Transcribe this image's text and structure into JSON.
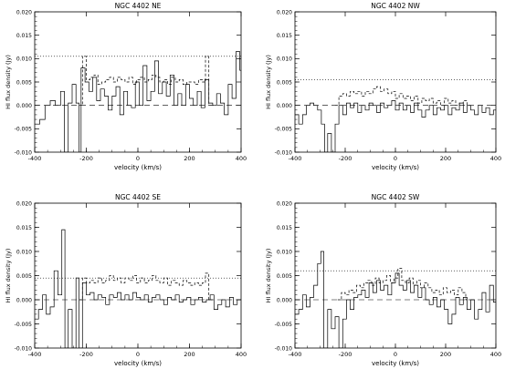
{
  "chart_data": [
    {
      "type": "line",
      "title": "NGC 4402 NE",
      "xlabel": "velocity (km/s)",
      "ylabel": "HI flux density (Jy)",
      "xlim": [
        -400,
        400
      ],
      "ylim": [
        -0.01,
        0.02
      ],
      "xticks": [
        -400,
        -200,
        0,
        200,
        400
      ],
      "yticks": [
        -0.01,
        -0.005,
        0.0,
        0.005,
        0.01,
        0.015,
        0.02
      ],
      "xtick_labels": [
        "-400",
        "-200",
        "0",
        "200",
        "400"
      ],
      "ytick_labels": [
        "-0.010",
        "-0.005",
        "0.000",
        "0.005",
        "0.010",
        "0.015",
        "0.020"
      ],
      "hlines": [
        {
          "style": "dotted",
          "y": 0.0105
        },
        {
          "style": "dashed",
          "y": 0.0
        }
      ],
      "series": [
        {
          "style": "solid-step",
          "x": [
            -400,
            -380,
            -360,
            -340,
            -320,
            -300,
            -285,
            -270,
            -255,
            -240,
            -228,
            -220,
            -205,
            -190,
            -175,
            -160,
            -145,
            -130,
            -115,
            -100,
            -85,
            -70,
            -55,
            -40,
            -25,
            -10,
            5,
            20,
            35,
            50,
            65,
            80,
            95,
            110,
            125,
            140,
            155,
            170,
            185,
            200,
            215,
            230,
            245,
            260,
            275,
            290,
            305,
            320,
            335,
            350,
            365,
            380,
            395
          ],
          "y": [
            -0.004,
            -0.003,
            0.0,
            0.001,
            0.0,
            0.003,
            -0.0105,
            0.0005,
            0.0045,
            0.0005,
            -0.0105,
            0.008,
            0.005,
            0.003,
            0.006,
            0.001,
            0.0035,
            0.002,
            -0.001,
            0.002,
            0.004,
            -0.002,
            0.003,
            0.0,
            -0.0005,
            0.005,
            0.0,
            0.0085,
            0.001,
            0.003,
            0.0095,
            0.0025,
            0.005,
            0.002,
            0.0065,
            0.0,
            0.0025,
            0.0,
            0.0045,
            0.0015,
            0.0,
            0.003,
            -0.0005,
            0.0055,
            0.0005,
            0.0,
            0.0025,
            0.0005,
            -0.002,
            0.0045,
            0.0015,
            0.0115,
            0.0075
          ]
        },
        {
          "style": "dashed-step",
          "x": [
            -228,
            -215,
            -200,
            -185,
            -170,
            -155,
            -140,
            -125,
            -110,
            -95,
            -80,
            -65,
            -50,
            -35,
            -20,
            -5,
            10,
            25,
            40,
            55,
            70,
            85,
            100,
            115,
            130,
            145,
            160,
            175,
            190,
            205,
            220,
            235,
            250,
            262,
            275
          ],
          "y": [
            0.0,
            0.0105,
            0.0055,
            0.006,
            0.0065,
            0.0045,
            0.005,
            0.0055,
            0.006,
            0.005,
            0.006,
            0.0055,
            0.005,
            0.006,
            0.0045,
            0.0055,
            0.006,
            0.005,
            0.0055,
            0.0065,
            0.006,
            0.005,
            0.0055,
            0.0045,
            0.006,
            0.005,
            0.0055,
            0.0045,
            0.005,
            0.005,
            0.0045,
            0.0055,
            0.005,
            0.0105,
            0.0
          ]
        }
      ]
    },
    {
      "type": "line",
      "title": "NGC 4402 NW",
      "xlabel": "velocity (km/s)",
      "ylabel": "HI flux density (Jy)",
      "xlim": [
        -400,
        400
      ],
      "ylim": [
        -0.01,
        0.02
      ],
      "xticks": [
        -400,
        -200,
        0,
        200,
        400
      ],
      "yticks": [
        -0.01,
        -0.005,
        0.0,
        0.005,
        0.01,
        0.015,
        0.02
      ],
      "xtick_labels": [
        "-400",
        "-200",
        "0",
        "200",
        "400"
      ],
      "ytick_labels": [
        "-0.010",
        "-0.005",
        "0.000",
        "0.005",
        "0.010",
        "0.015",
        "0.020"
      ],
      "hlines": [
        {
          "style": "dotted",
          "y": 0.0055
        },
        {
          "style": "dashed",
          "y": 0.0
        }
      ],
      "series": [
        {
          "style": "solid-step",
          "x": [
            -400,
            -385,
            -370,
            -355,
            -340,
            -325,
            -310,
            -295,
            -282,
            -270,
            -255,
            -240,
            -225,
            -210,
            -195,
            -180,
            -165,
            -150,
            -135,
            -120,
            -105,
            -90,
            -75,
            -60,
            -45,
            -30,
            -15,
            0,
            15,
            30,
            45,
            60,
            75,
            90,
            105,
            120,
            135,
            150,
            165,
            180,
            195,
            210,
            225,
            240,
            255,
            270,
            285,
            300,
            315,
            330,
            345,
            360,
            375,
            390
          ],
          "y": [
            -0.002,
            -0.004,
            -0.002,
            0.0,
            0.0005,
            0.0,
            -0.001,
            -0.004,
            -0.01,
            -0.006,
            -0.0105,
            -0.004,
            0.0,
            -0.002,
            0.0005,
            -0.0005,
            0.0005,
            -0.0015,
            0.0,
            -0.001,
            0.0005,
            0.0,
            -0.0015,
            0.0005,
            -0.0005,
            0.0,
            0.001,
            -0.001,
            0.0005,
            -0.001,
            0.0,
            -0.0015,
            0.0005,
            -0.001,
            -0.0025,
            -0.001,
            0.0,
            -0.002,
            -0.0005,
            -0.001,
            0.0,
            -0.002,
            -0.0005,
            -0.001,
            0.0005,
            -0.0015,
            0.0,
            -0.001,
            -0.002,
            0.0,
            -0.0015,
            -0.0005,
            -0.002,
            -0.001
          ]
        },
        {
          "style": "dashed-step",
          "x": [
            -240,
            -225,
            -210,
            -195,
            -180,
            -165,
            -150,
            -135,
            -120,
            -105,
            -90,
            -75,
            -60,
            -45,
            -30,
            -15,
            0,
            15,
            30,
            45,
            60,
            75,
            90,
            105,
            120,
            135,
            150,
            165,
            180,
            195,
            210,
            225,
            240,
            255,
            270,
            285
          ],
          "y": [
            0.0,
            0.002,
            0.0025,
            0.002,
            0.003,
            0.0025,
            0.003,
            0.002,
            0.003,
            0.0025,
            0.0035,
            0.004,
            0.003,
            0.0035,
            0.0025,
            0.003,
            0.0015,
            0.0025,
            0.0015,
            0.002,
            0.001,
            0.002,
            0.0005,
            0.0015,
            0.001,
            0.0015,
            0.0005,
            0.001,
            0.0,
            0.0015,
            0.0005,
            0.001,
            0.0,
            0.0005,
            0.001,
            0.0
          ]
        }
      ]
    },
    {
      "type": "line",
      "title": "NGC 4402 SE",
      "xlabel": "velocity (km/s)",
      "ylabel": "HI flux density (Jy)",
      "xlim": [
        -400,
        400
      ],
      "ylim": [
        -0.01,
        0.02
      ],
      "xticks": [
        -400,
        -200,
        0,
        200,
        400
      ],
      "yticks": [
        -0.01,
        -0.005,
        0.0,
        0.005,
        0.01,
        0.015,
        0.02
      ],
      "xtick_labels": [
        "-400",
        "-200",
        "0",
        "200",
        "400"
      ],
      "ytick_labels": [
        "-0.010",
        "-0.005",
        "0.000",
        "0.005",
        "0.010",
        "0.015",
        "0.020"
      ],
      "hlines": [
        {
          "style": "dotted",
          "y": 0.0045
        },
        {
          "style": "dashed",
          "y": 0.0
        }
      ],
      "series": [
        {
          "style": "solid-step",
          "x": [
            -400,
            -385,
            -370,
            -355,
            -340,
            -325,
            -310,
            -295,
            -283,
            -270,
            -255,
            -240,
            -228,
            -215,
            -200,
            -185,
            -170,
            -155,
            -140,
            -125,
            -110,
            -95,
            -80,
            -65,
            -50,
            -35,
            -20,
            -5,
            10,
            25,
            40,
            55,
            70,
            85,
            100,
            115,
            130,
            145,
            160,
            175,
            190,
            205,
            220,
            235,
            250,
            265,
            280,
            295,
            310,
            325,
            340,
            355,
            370,
            385
          ],
          "y": [
            -0.004,
            -0.002,
            0.001,
            -0.003,
            -0.0015,
            0.006,
            0.001,
            0.0145,
            -0.0105,
            -0.002,
            -0.0105,
            0.0045,
            -0.0105,
            0.0035,
            0.001,
            0.0015,
            0.0,
            0.001,
            0.0005,
            -0.001,
            0.001,
            0.0005,
            0.0015,
            0.0,
            0.001,
            0.0,
            0.0015,
            0.0005,
            0.0,
            0.001,
            -0.0005,
            0.0005,
            0.001,
            0.0,
            -0.001,
            0.0005,
            0.0,
            0.001,
            -0.0005,
            0.0,
            0.0005,
            -0.001,
            0.0,
            0.0005,
            -0.0005,
            0.0,
            0.001,
            -0.002,
            -0.001,
            0.0,
            -0.0015,
            0.0005,
            -0.001,
            0.0
          ]
        },
        {
          "style": "dashed-step",
          "x": [
            -228,
            -215,
            -200,
            -185,
            -170,
            -155,
            -140,
            -125,
            -110,
            -95,
            -80,
            -65,
            -50,
            -35,
            -20,
            -5,
            10,
            25,
            40,
            55,
            70,
            85,
            100,
            115,
            130,
            145,
            160,
            175,
            190,
            205,
            220,
            235,
            250,
            262,
            275
          ],
          "y": [
            0.0,
            0.0045,
            0.0035,
            0.004,
            0.0035,
            0.0045,
            0.0035,
            0.004,
            0.005,
            0.004,
            0.0045,
            0.0035,
            0.0045,
            0.004,
            0.005,
            0.0035,
            0.0045,
            0.0035,
            0.004,
            0.005,
            0.004,
            0.0035,
            0.0045,
            0.003,
            0.004,
            0.0035,
            0.003,
            0.004,
            0.0035,
            0.003,
            0.0035,
            0.003,
            0.0035,
            0.0055,
            0.0
          ]
        }
      ]
    },
    {
      "type": "line",
      "title": "NGC 4402 SW",
      "xlabel": "velocity (km/s)",
      "ylabel": "HI flux density (Jy)",
      "xlim": [
        -400,
        400
      ],
      "ylim": [
        -0.01,
        0.02
      ],
      "xticks": [
        -400,
        -200,
        0,
        200,
        400
      ],
      "yticks": [
        -0.01,
        -0.005,
        0.0,
        0.005,
        0.01,
        0.015,
        0.02
      ],
      "xtick_labels": [
        "-400",
        "-200",
        "0",
        "200",
        "400"
      ],
      "ytick_labels": [
        "-0.010",
        "-0.005",
        "0.000",
        "0.005",
        "0.010",
        "0.015",
        "0.020"
      ],
      "hlines": [
        {
          "style": "dotted",
          "y": 0.006
        },
        {
          "style": "dashed",
          "y": 0.0
        }
      ],
      "series": [
        {
          "style": "solid-step",
          "x": [
            -400,
            -385,
            -370,
            -355,
            -340,
            -325,
            -310,
            -297,
            -285,
            -270,
            -255,
            -240,
            -225,
            -210,
            -195,
            -180,
            -165,
            -150,
            -135,
            -120,
            -105,
            -90,
            -75,
            -60,
            -45,
            -30,
            -15,
            0,
            15,
            30,
            45,
            60,
            75,
            90,
            105,
            120,
            135,
            150,
            165,
            180,
            195,
            210,
            225,
            240,
            255,
            270,
            285,
            300,
            315,
            330,
            345,
            360,
            375,
            390
          ],
          "y": [
            -0.003,
            -0.002,
            0.001,
            -0.0015,
            0.0005,
            0.003,
            0.0075,
            0.01,
            -0.0105,
            -0.002,
            -0.006,
            -0.0035,
            -0.0105,
            -0.004,
            0.0,
            -0.002,
            0.0005,
            0.001,
            0.002,
            0.0005,
            0.0035,
            0.0015,
            0.004,
            0.002,
            0.003,
            0.001,
            0.0035,
            0.0055,
            0.003,
            0.002,
            0.004,
            0.0015,
            0.003,
            0.0005,
            0.0025,
            0.0,
            -0.001,
            0.0005,
            -0.0015,
            0.0,
            -0.002,
            -0.005,
            -0.003,
            0.0005,
            -0.001,
            0.0005,
            -0.002,
            0.0,
            -0.004,
            -0.002,
            0.0015,
            -0.0025,
            0.003,
            -0.0005
          ]
        },
        {
          "style": "dashed-step",
          "x": [
            -230,
            -215,
            -200,
            -185,
            -170,
            -155,
            -140,
            -125,
            -110,
            -95,
            -80,
            -65,
            -50,
            -35,
            -20,
            -5,
            10,
            25,
            40,
            55,
            70,
            85,
            100,
            115,
            130,
            145,
            160,
            175,
            190,
            205,
            220,
            235,
            250,
            265,
            280
          ],
          "y": [
            0.0,
            0.0015,
            0.001,
            0.002,
            0.0015,
            0.003,
            0.0025,
            0.0035,
            0.004,
            0.003,
            0.0045,
            0.0035,
            0.004,
            0.005,
            0.0035,
            0.0045,
            0.0065,
            0.004,
            0.0035,
            0.0045,
            0.003,
            0.004,
            0.0025,
            0.0035,
            0.0025,
            0.0015,
            0.002,
            0.001,
            0.0025,
            0.0015,
            0.002,
            0.001,
            0.0025,
            0.0015,
            0.0
          ]
        }
      ]
    }
  ]
}
